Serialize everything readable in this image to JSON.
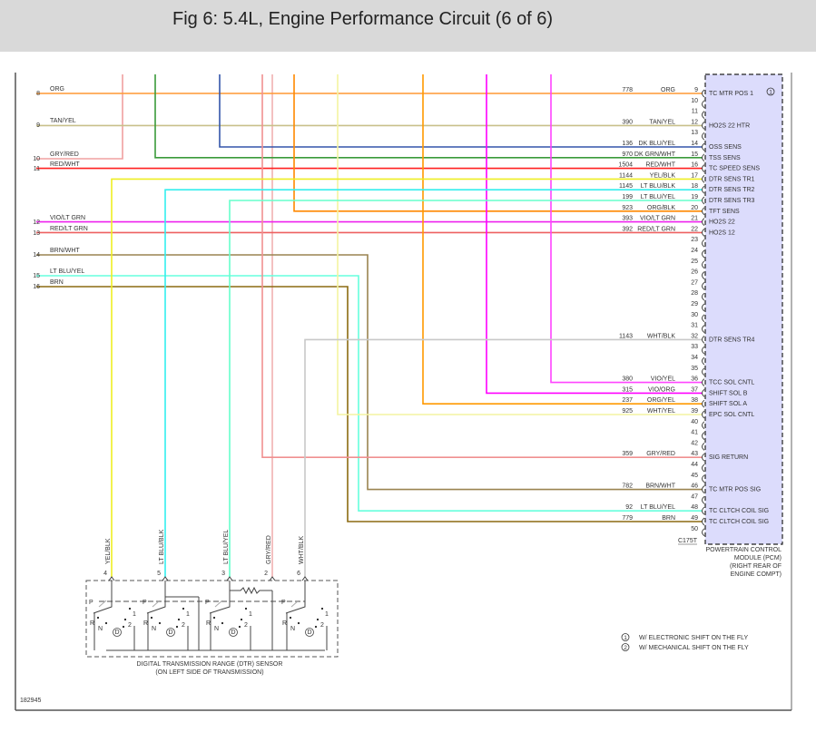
{
  "header": {
    "title": "Fig 6: 5.4L, Engine Performance Circuit (6 of 6)"
  },
  "left_connector": [
    {
      "pin": "8",
      "wire": "ORG",
      "color": "#ff9933"
    },
    {
      "pin": "9",
      "wire": "TAN/YEL",
      "color": "#c8c08a"
    },
    {
      "pin": "10",
      "wire": "GRY/RED",
      "color": "#f0a0a0"
    },
    {
      "pin": "11",
      "wire": "RED/WHT",
      "color": "#ff2020"
    },
    {
      "pin": "12",
      "wire": "VIO/LT GRN",
      "color": "#ee22ee"
    },
    {
      "pin": "13",
      "wire": "RED/LT GRN",
      "color": "#ee6060"
    },
    {
      "pin": "14",
      "wire": "BRN/WHT",
      "color": "#9a8450"
    },
    {
      "pin": "15",
      "wire": "LT BLU/YEL",
      "color": "#44ffee"
    },
    {
      "pin": "16",
      "wire": "BRN",
      "color": "#8c6a10"
    }
  ],
  "pcm": {
    "connector": "C175T",
    "label": [
      "POWERTRAIN CONTROL",
      "MODULE (PCM)",
      "(RIGHT REAR OF",
      "ENGINE COMPT)"
    ],
    "fill_color": "#dcdcfc",
    "note_marker": "1",
    "pins": [
      {
        "pin": "9",
        "circuit": "778",
        "wire": "ORG",
        "function": "TC MTR POS 1",
        "color": "#ff9933"
      },
      {
        "pin": "10"
      },
      {
        "pin": "11"
      },
      {
        "pin": "12",
        "circuit": "390",
        "wire": "TAN/YEL",
        "function": "HO2S 22 HTR",
        "color": "#c8c08a"
      },
      {
        "pin": "13"
      },
      {
        "pin": "14",
        "circuit": "136",
        "wire": "DK BLU/YEL",
        "function": "OSS SENS",
        "color": "#3355aa"
      },
      {
        "pin": "15",
        "circuit": "970",
        "wire": "DK GRN/WHT",
        "function": "TSS SENS",
        "color": "#3a9a3a"
      },
      {
        "pin": "16",
        "circuit": "1504",
        "wire": "RED/WHT",
        "function": "TC SPEED SENS",
        "color": "#ff2020"
      },
      {
        "pin": "17",
        "circuit": "1144",
        "wire": "YEL/BLK",
        "function": "DTR SENS TR1",
        "color": "#eeee22"
      },
      {
        "pin": "18",
        "circuit": "1145",
        "wire": "LT BLU/BLK",
        "function": "DTR SENS TR2",
        "color": "#33eeee"
      },
      {
        "pin": "19",
        "circuit": "199",
        "wire": "LT BLU/YEL",
        "function": "DTR SENS TR3",
        "color": "#66ffcc"
      },
      {
        "pin": "20",
        "circuit": "923",
        "wire": "ORG/BLK",
        "function": "TFT SENS",
        "color": "#ff8800"
      },
      {
        "pin": "21",
        "circuit": "393",
        "wire": "VIO/LT GRN",
        "function": "HO2S 22",
        "color": "#ee22ee"
      },
      {
        "pin": "22",
        "circuit": "392",
        "wire": "RED/LT GRN",
        "function": "HO2S 12",
        "color": "#ee6060"
      },
      {
        "pin": "23"
      },
      {
        "pin": "24"
      },
      {
        "pin": "25"
      },
      {
        "pin": "26"
      },
      {
        "pin": "27"
      },
      {
        "pin": "28"
      },
      {
        "pin": "29"
      },
      {
        "pin": "30"
      },
      {
        "pin": "31"
      },
      {
        "pin": "32",
        "circuit": "1143",
        "wire": "WHT/BLK",
        "function": "DTR SENS TR4",
        "color": "#c8c8c8"
      },
      {
        "pin": "33"
      },
      {
        "pin": "34"
      },
      {
        "pin": "35"
      },
      {
        "pin": "36",
        "circuit": "380",
        "wire": "VIO/YEL",
        "function": "TCC SOL CNTL",
        "color": "#ff44ff"
      },
      {
        "pin": "37",
        "circuit": "315",
        "wire": "VIO/ORG",
        "function": "SHIFT SOL B",
        "color": "#ff00ff"
      },
      {
        "pin": "38",
        "circuit": "237",
        "wire": "ORG/YEL",
        "function": "SHIFT SOL A",
        "color": "#ff9900"
      },
      {
        "pin": "39",
        "circuit": "925",
        "wire": "WHT/YEL",
        "function": "EPC SOL CNTL",
        "color": "#f4f4a0"
      },
      {
        "pin": "40"
      },
      {
        "pin": "41"
      },
      {
        "pin": "42"
      },
      {
        "pin": "43",
        "circuit": "359",
        "wire": "GRY/RED",
        "function": "SIG RETURN",
        "color": "#f09090"
      },
      {
        "pin": "44"
      },
      {
        "pin": "45"
      },
      {
        "pin": "46",
        "circuit": "782",
        "wire": "BRN/WHT",
        "function": "TC MTR POS SIG",
        "color": "#9a8450"
      },
      {
        "pin": "47"
      },
      {
        "pin": "48",
        "circuit": "92",
        "wire": "LT BLU/YEL",
        "function": "TC CLTCH COIL SIG",
        "color": "#66ffdd"
      },
      {
        "pin": "49",
        "circuit": "779",
        "wire": "BRN",
        "function": "TC CLTCH COIL SIG",
        "color": "#8c6a10"
      },
      {
        "pin": "50"
      }
    ]
  },
  "dtr_sensor": {
    "label": [
      "DIGITAL TRANSMISSION RANGE (DTR) SENSOR",
      "(ON LEFT SIDE OF TRANSMISSION)"
    ],
    "pins": [
      {
        "pin": "4",
        "wire": "YEL/BLK",
        "color": "#eeee22"
      },
      {
        "pin": "5",
        "wire": "LT BLU/BLK",
        "color": "#33eeee"
      },
      {
        "pin": "3",
        "wire": "LT BLU/YEL",
        "color": "#66ffcc"
      },
      {
        "pin": "2",
        "wire": "GRY/RED",
        "color": "#f0b0b0"
      },
      {
        "pin": "6",
        "wire": "WHT/BLK",
        "color": "#c8c8c8"
      }
    ],
    "switch_positions": [
      "P",
      "R",
      "N",
      "D",
      "2",
      "1"
    ]
  },
  "footnotes": [
    {
      "marker": "1",
      "text": "W/ ELECTRONIC SHIFT ON THE FLY"
    },
    {
      "marker": "2",
      "text": "W/ MECHANICAL SHIFT ON THE FLY"
    }
  ],
  "figure_id": "182945"
}
